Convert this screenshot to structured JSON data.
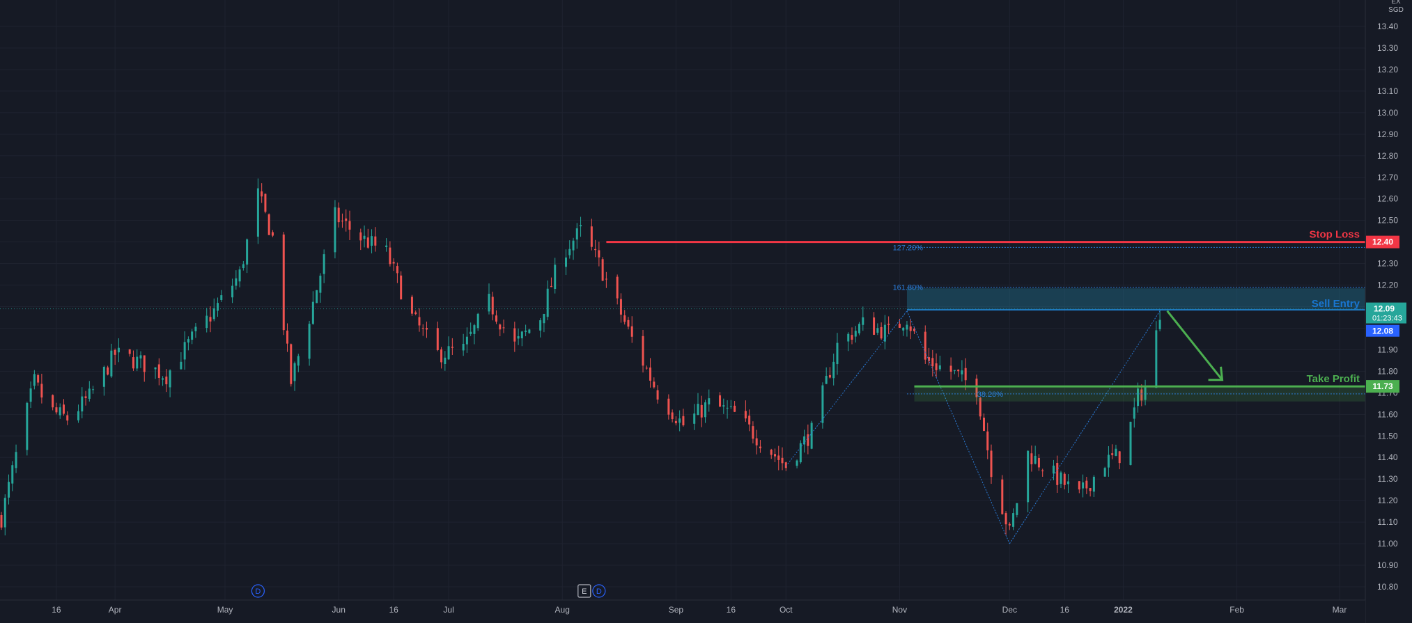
{
  "chart_data": {
    "type": "candlestick",
    "currency_label": [
      "EX",
      "SGD"
    ],
    "y_ticks": [
      "13.40",
      "13.30",
      "13.20",
      "13.10",
      "13.00",
      "12.90",
      "12.80",
      "12.70",
      "12.60",
      "12.50",
      "12.40",
      "12.30",
      "12.20",
      "12.10",
      "12.00",
      "11.90",
      "11.80",
      "11.70",
      "11.60",
      "11.50",
      "11.40",
      "11.30",
      "11.20",
      "11.10",
      "11.00",
      "10.90",
      "10.80"
    ],
    "ylim": [
      10.76,
      13.45
    ],
    "x_ticks": [
      {
        "label": "16",
        "date": "2021-03-16",
        "bold": false
      },
      {
        "label": "Apr",
        "date": "2021-04-01",
        "bold": false
      },
      {
        "label": "May",
        "date": "2021-05-01",
        "bold": false
      },
      {
        "label": "Jun",
        "date": "2021-06-01",
        "bold": false
      },
      {
        "label": "16",
        "date": "2021-06-16",
        "bold": false
      },
      {
        "label": "Jul",
        "date": "2021-07-01",
        "bold": false
      },
      {
        "label": "Aug",
        "date": "2021-08-01",
        "bold": false
      },
      {
        "label": "Sep",
        "date": "2021-09-01",
        "bold": false
      },
      {
        "label": "16",
        "date": "2021-09-16",
        "bold": false
      },
      {
        "label": "Oct",
        "date": "2021-10-01",
        "bold": false
      },
      {
        "label": "Nov",
        "date": "2021-11-01",
        "bold": false
      },
      {
        "label": "Dec",
        "date": "2021-12-01",
        "bold": false
      },
      {
        "label": "16",
        "date": "2021-12-16",
        "bold": false
      },
      {
        "label": "2022",
        "date": "2022-01-01",
        "bold": true
      },
      {
        "label": "Feb",
        "date": "2022-02-01",
        "bold": false
      },
      {
        "label": "Mar",
        "date": "2022-03-01",
        "bold": false
      }
    ],
    "price_path": [
      {
        "date": "2021-03-01",
        "close": 11.12
      },
      {
        "date": "2021-03-06",
        "close": 11.48
      },
      {
        "date": "2021-03-10",
        "close": 11.75
      },
      {
        "date": "2021-03-14",
        "close": 11.62
      },
      {
        "date": "2021-03-19",
        "close": 11.58
      },
      {
        "date": "2021-03-25",
        "close": 11.68
      },
      {
        "date": "2021-04-01",
        "close": 11.88
      },
      {
        "date": "2021-04-08",
        "close": 11.84
      },
      {
        "date": "2021-04-15",
        "close": 11.78
      },
      {
        "date": "2021-04-22",
        "close": 11.95
      },
      {
        "date": "2021-04-28",
        "close": 12.08
      },
      {
        "date": "2021-05-05",
        "close": 12.25
      },
      {
        "date": "2021-05-10",
        "close": 12.62
      },
      {
        "date": "2021-05-14",
        "close": 12.42
      },
      {
        "date": "2021-05-19",
        "close": 11.75
      },
      {
        "date": "2021-05-24",
        "close": 12.05
      },
      {
        "date": "2021-05-31",
        "close": 12.52
      },
      {
        "date": "2021-06-07",
        "close": 12.42
      },
      {
        "date": "2021-06-14",
        "close": 12.35
      },
      {
        "date": "2021-06-21",
        "close": 12.05
      },
      {
        "date": "2021-06-28",
        "close": 11.88
      },
      {
        "date": "2021-07-05",
        "close": 11.9
      },
      {
        "date": "2021-07-12",
        "close": 12.12
      },
      {
        "date": "2021-07-19",
        "close": 11.92
      },
      {
        "date": "2021-07-26",
        "close": 12.05
      },
      {
        "date": "2021-08-01",
        "close": 12.35
      },
      {
        "date": "2021-08-06",
        "close": 12.45
      },
      {
        "date": "2021-08-11",
        "close": 12.3
      },
      {
        "date": "2021-08-20",
        "close": 11.95
      },
      {
        "date": "2021-08-27",
        "close": 11.7
      },
      {
        "date": "2021-09-03",
        "close": 11.55
      },
      {
        "date": "2021-09-10",
        "close": 11.65
      },
      {
        "date": "2021-09-17",
        "close": 11.6
      },
      {
        "date": "2021-09-24",
        "close": 11.48
      },
      {
        "date": "2021-10-01",
        "close": 11.36
      },
      {
        "date": "2021-10-08",
        "close": 11.52
      },
      {
        "date": "2021-10-15",
        "close": 11.92
      },
      {
        "date": "2021-10-22",
        "close": 12.02
      },
      {
        "date": "2021-10-29",
        "close": 11.98
      },
      {
        "date": "2021-11-03",
        "close": 12.05
      },
      {
        "date": "2021-11-08",
        "close": 11.85
      },
      {
        "date": "2021-11-15",
        "close": 11.8
      },
      {
        "date": "2021-11-22",
        "close": 11.72
      },
      {
        "date": "2021-11-26",
        "close": 11.35
      },
      {
        "date": "2021-12-01",
        "close": 11.05
      },
      {
        "date": "2021-12-06",
        "close": 11.42
      },
      {
        "date": "2021-12-13",
        "close": 11.32
      },
      {
        "date": "2021-12-20",
        "close": 11.22
      },
      {
        "date": "2021-12-27",
        "close": 11.38
      },
      {
        "date": "2022-01-01",
        "close": 11.42
      },
      {
        "date": "2022-01-05",
        "close": 11.68
      },
      {
        "date": "2022-01-08",
        "close": 11.75
      },
      {
        "date": "2022-01-11",
        "close": 12.08
      }
    ],
    "levels": [
      {
        "name": "Stop Loss",
        "price": 12.4,
        "label": "12.40",
        "color": "#f23645",
        "from_date": "2021-08-13"
      },
      {
        "name": "Take Profit",
        "price": 11.73,
        "label": "11.73",
        "color": "#4caf50",
        "from_date": "2021-11-05"
      }
    ],
    "last_price": {
      "price": "12.09",
      "countdown": "01:23:43",
      "color": "#26a69a"
    },
    "sell_entry_price": {
      "price": "12.08",
      "color": "#2962ff"
    },
    "sell_entry_zone": {
      "label": "Sell Entry",
      "from_price": 12.085,
      "to_price": 12.185,
      "from_date": "2021-11-03",
      "color": "#1f6d8a"
    },
    "fib_levels": [
      {
        "label": "127.20%",
        "price": 12.375
      },
      {
        "label": "161.80%",
        "price": 12.19
      },
      {
        "label": "38.20%",
        "price": 11.695
      }
    ],
    "current_price_line": 12.09,
    "pattern_points": [
      {
        "date": "2021-10-01",
        "price": 11.36
      },
      {
        "date": "2021-11-03",
        "price": 12.08
      },
      {
        "date": "2021-12-01",
        "price": 11.0
      },
      {
        "date": "2022-01-11",
        "price": 12.08
      }
    ],
    "take_profit_zone": {
      "from_date": "2021-11-05",
      "top": 11.73,
      "bottom": 11.66
    },
    "forecast_arrow": {
      "from_date": "2022-01-13",
      "from_price": 12.08,
      "to_date": "2022-01-28",
      "to_price": 11.76,
      "color": "#4caf50"
    },
    "event_markers": [
      {
        "label": "D",
        "date": "2021-05-10",
        "kind": "dividend"
      },
      {
        "label": "E",
        "date": "2021-08-07",
        "kind": "earnings"
      },
      {
        "label": "D",
        "date": "2021-08-11",
        "kind": "dividend"
      }
    ],
    "grid": true,
    "colors": {
      "up": "#26a69a",
      "down": "#ef5350",
      "background": "#161a25",
      "text": "#b2b5be",
      "fib": "#2a7bd6"
    }
  }
}
